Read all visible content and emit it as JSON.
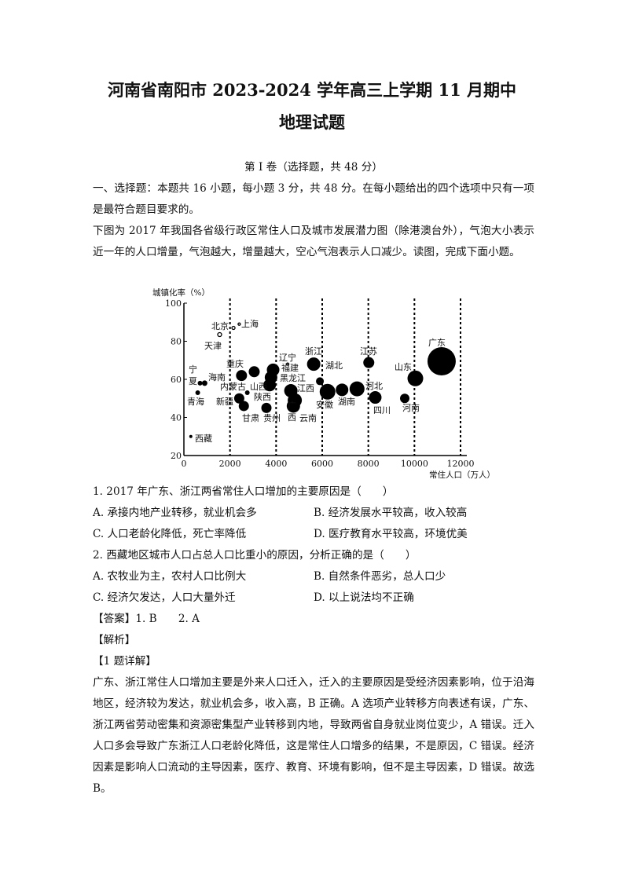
{
  "header": {
    "title": "河南省南阳市 2023-2024 学年高三上学期 11 月期中",
    "subtitle": "地理试题"
  },
  "section": {
    "heading": "第 I 卷（选择题，共 48 分）",
    "instruction": "一、选择题：本题共 16 小题，每小题 3 分，共 48 分。在每小题给出的四个选项中只有一项是最符合题目要求的。",
    "intro": "下图为 2017 年我国各省级行政区常住人口及城市发展潜力图（除港澳台外），气泡大小表示近一年的人口增量，气泡越大，增量越大，空心气泡表示人口减少。读图，完成下面小题。"
  },
  "chart_data": {
    "type": "scatter",
    "subtype": "bubble",
    "xlabel": "常住人口（万人）",
    "ylabel": "城镇化率（%）",
    "xlim": [
      0,
      12000
    ],
    "ylim": [
      20,
      100
    ],
    "xticks": [
      "0",
      "2000",
      "4000",
      "6000",
      "8000",
      "10000",
      "12000"
    ],
    "yticks": [
      "20",
      "40",
      "60",
      "80",
      "100"
    ],
    "reference_lines_x": [
      2000,
      4000,
      6000,
      8000,
      10000,
      12000
    ],
    "grid": false,
    "color": "#000000",
    "points": [
      {
        "label": "西藏",
        "x": 300,
        "y": 30,
        "size": 2,
        "hollow": false
      },
      {
        "label": "宁夏",
        "x": 700,
        "y": 58,
        "size": 3,
        "hollow": false
      },
      {
        "label": "海南",
        "x": 900,
        "y": 58,
        "size": 3.5,
        "hollow": false
      },
      {
        "label": "青海",
        "x": 600,
        "y": 53,
        "size": 3,
        "hollow": false
      },
      {
        "label": "天津",
        "x": 1550,
        "y": 83.5,
        "size": 2.5,
        "hollow": true
      },
      {
        "label": "北京",
        "x": 2150,
        "y": 87,
        "size": 2,
        "hollow": true
      },
      {
        "label": "上海",
        "x": 2400,
        "y": 89,
        "size": 1.5,
        "hollow": true
      },
      {
        "label": "重庆",
        "x": 2500,
        "y": 62,
        "size": 7,
        "hollow": false
      },
      {
        "label": "内蒙古",
        "x": 3050,
        "y": 64,
        "size": 7,
        "hollow": false
      },
      {
        "label": "山西",
        "x": 2750,
        "y": 53,
        "size": 3,
        "hollow": false
      },
      {
        "label": "新疆",
        "x": 2400,
        "y": 50,
        "size": 6.5,
        "hollow": false
      },
      {
        "label": "甘肃",
        "x": 2600,
        "y": 46,
        "size": 6.5,
        "hollow": false
      },
      {
        "label": "贵州",
        "x": 3580,
        "y": 45,
        "size": 6.5,
        "hollow": false
      },
      {
        "label": "辽宁",
        "x": 4500,
        "y": 68,
        "size": 1.5,
        "hollow": true
      },
      {
        "label": "福建",
        "x": 3870,
        "y": 65,
        "size": 8,
        "hollow": false
      },
      {
        "label": "黑龙江",
        "x": 3780,
        "y": 61,
        "size": 8,
        "hollow": false
      },
      {
        "label": "陕西",
        "x": 3720,
        "y": 57,
        "size": 8,
        "hollow": false
      },
      {
        "label": "江西",
        "x": 4640,
        "y": 54,
        "size": 8.5,
        "hollow": false
      },
      {
        "label": "广西",
        "x": 4810,
        "y": 49,
        "size": 9,
        "hollow": false
      },
      {
        "label": "云南",
        "x": 4750,
        "y": 46,
        "size": 8.5,
        "hollow": false
      },
      {
        "label": "浙江",
        "x": 5630,
        "y": 68,
        "size": 8.5,
        "hollow": false
      },
      {
        "label": "湖北",
        "x": 5900,
        "y": 59,
        "size": 5,
        "hollow": false
      },
      {
        "label": "安徽",
        "x": 6230,
        "y": 53.5,
        "size": 10,
        "hollow": false
      },
      {
        "label": "湖南",
        "x": 6860,
        "y": 54.5,
        "size": 8,
        "hollow": false
      },
      {
        "label": "河北",
        "x": 7510,
        "y": 55,
        "size": 9.5,
        "hollow": false
      },
      {
        "label": "江苏",
        "x": 8020,
        "y": 68.8,
        "size": 7,
        "hollow": false
      },
      {
        "label": "四川",
        "x": 8300,
        "y": 50.5,
        "size": 8,
        "hollow": false
      },
      {
        "label": "河南",
        "x": 9580,
        "y": 50,
        "size": 6,
        "hollow": false
      },
      {
        "label": "山东",
        "x": 10040,
        "y": 60.5,
        "size": 10,
        "hollow": false
      },
      {
        "label": "广东",
        "x": 11180,
        "y": 69.5,
        "size": 18,
        "hollow": false
      }
    ]
  },
  "questions": [
    {
      "stem": "1. 2017 年广东、浙江两省常住人口增加的主要原因是（　　）",
      "options": [
        "A.  承接内地产业转移，就业机会多",
        "B.  经济发展水平较高，收入较高",
        "C.  人口老龄化降低，死亡率降低",
        "D.  医疗教育水平较高，环境优美"
      ]
    },
    {
      "stem": "2. 西藏地区城市人口占总人口比重小的原因，分析正确的是（　　）",
      "options": [
        "A.  农牧业为主，农村人口比例大",
        "B.  自然条件恶劣，总人口少",
        "C.  经济欠发达，人口大量外迁",
        "D.  以上说法均不正确"
      ]
    }
  ],
  "answer": {
    "label": "【答案】1. B　　2. A",
    "analysis_label": "【解析】",
    "detail_label": "【1 题详解】",
    "detail": "广东、浙江常住人口增加主要是外来人口迁入，迁入的主要原因是受经济因素影响，位于沿海地区，经济较为发达，就业机会多，收入高，B 正确。A 选项产业转移方向表述有误，广东、浙江两省劳动密集和资源密集型产业转移到内地，导致两省自身就业岗位变少，A 错误。迁入人口多会导致广东浙江人口老龄化降低，这是常住人口增多的结果，不是原因，C 错误。经济因素是影响人口流动的主导因素，医疗、教育、环境有影响，但不是主导因素，D 错误。故选 B。"
  }
}
